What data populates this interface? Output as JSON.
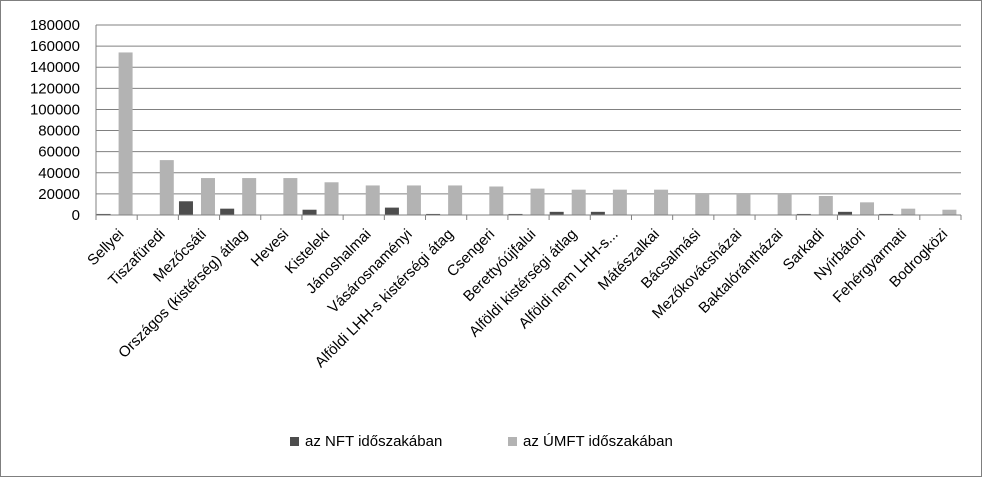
{
  "chart_data": {
    "type": "bar",
    "categories": [
      "Sellyei",
      "Tiszafüredi",
      "Mezőcsáti",
      "Országos (kistérség) átlag",
      "Hevesi",
      "Kisteleki",
      "Jánoshalmai",
      "Vásárosnaményi",
      "Alföldi LHH-s kistérségi átag",
      "Csengeri",
      "Berettyóújfalui",
      "Alföldi kistérségi átlag",
      "Alföldi nem LHH-s...",
      "Mátészalkai",
      "Bácsalmási",
      "Mezőkovácsházai",
      "Baktalórántházai",
      "Sarkadi",
      "Nyírbátori",
      "Fehérgyarmati",
      "Bodrogközi"
    ],
    "series": [
      {
        "name": "az NFT időszakában",
        "color": "#4d4d4d",
        "values": [
          1000,
          0,
          13000,
          6000,
          0,
          5000,
          0,
          7000,
          1000,
          0,
          1000,
          3000,
          3000,
          0,
          0,
          0,
          0,
          1000,
          3000,
          1000,
          0
        ]
      },
      {
        "name": "az ÚMFT időszakában",
        "color": "#b3b3b3",
        "values": [
          154000,
          52000,
          35000,
          35000,
          35000,
          31000,
          28000,
          28000,
          28000,
          27000,
          25000,
          24000,
          24000,
          24000,
          20000,
          20000,
          20000,
          18000,
          12000,
          6000,
          5000
        ]
      }
    ],
    "y_ticks": [
      "0",
      "20000",
      "40000",
      "60000",
      "80000",
      "100000",
      "120000",
      "140000",
      "160000",
      "180000"
    ],
    "ylim": [
      0,
      180000
    ],
    "grid": true,
    "legend_position": "bottom",
    "title": "",
    "xlabel": "",
    "ylabel": ""
  }
}
